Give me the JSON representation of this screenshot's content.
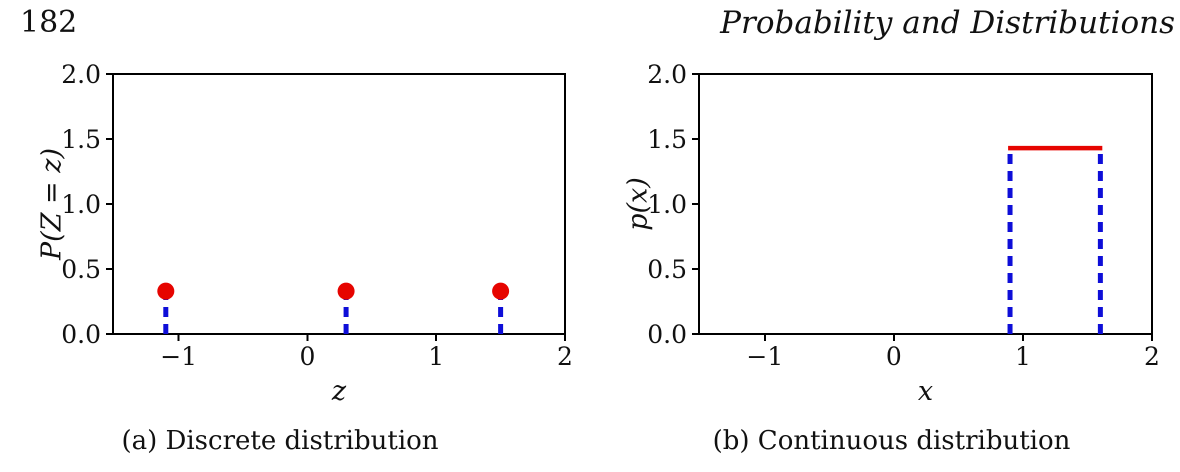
{
  "header": {
    "page_number": "182",
    "title": "Probability and Distributions"
  },
  "colors": {
    "axis": "#000000",
    "stem_blue": "#0e0ed8",
    "marker_red": "#e60400"
  },
  "chart_data": [
    {
      "type": "stem",
      "caption": "(a) Discrete distribution",
      "xlabel": "z",
      "ylabel": "P(Z = z)",
      "xlim": [
        -1.51,
        2.0
      ],
      "ylim": [
        0.0,
        2.0
      ],
      "grid": false,
      "legend": null,
      "xticks": [
        {
          "v": -1,
          "label": "−1"
        },
        {
          "v": 0,
          "label": "0"
        },
        {
          "v": 1,
          "label": "1"
        },
        {
          "v": 2,
          "label": "2"
        }
      ],
      "yticks": [
        {
          "v": 0.0,
          "label": "0.0"
        },
        {
          "v": 0.5,
          "label": "0.5"
        },
        {
          "v": 1.0,
          "label": "1.0"
        },
        {
          "v": 1.5,
          "label": "1.5"
        },
        {
          "v": 2.0,
          "label": "2.0"
        }
      ],
      "series": [
        {
          "kind": "stem",
          "name": "P(Z = z) point masses",
          "color": "#0e0ed8",
          "width": 5,
          "dash": "10 7",
          "marker": {
            "shape": "circle",
            "color": "#e60400",
            "radius": 8.5
          },
          "points": [
            [
              -1.1,
              0.33
            ],
            [
              0.3,
              0.33
            ],
            [
              1.5,
              0.33
            ]
          ]
        }
      ]
    },
    {
      "type": "line",
      "caption": "(b) Continuous distribution",
      "xlabel": "x",
      "ylabel": "p(x)",
      "xlim": [
        -1.51,
        2.0
      ],
      "ylim": [
        0.0,
        2.0
      ],
      "grid": false,
      "legend": null,
      "xticks": [
        {
          "v": -1,
          "label": "−1"
        },
        {
          "v": 0,
          "label": "0"
        },
        {
          "v": 1,
          "label": "1"
        },
        {
          "v": 2,
          "label": "2"
        }
      ],
      "yticks": [
        {
          "v": 0.0,
          "label": "0.0"
        },
        {
          "v": 0.5,
          "label": "0.5"
        },
        {
          "v": 1.0,
          "label": "1.0"
        },
        {
          "v": 1.5,
          "label": "1.5"
        },
        {
          "v": 2.0,
          "label": "2.0"
        }
      ],
      "series": [
        {
          "kind": "line",
          "name": "left support boundary x = 0.9",
          "color": "#0e0ed8",
          "width": 5,
          "dash": "10 7",
          "points": [
            [
              0.9,
              0.0
            ],
            [
              0.9,
              1.43
            ]
          ]
        },
        {
          "kind": "line",
          "name": "right support boundary x = 1.6",
          "color": "#0e0ed8",
          "width": 5,
          "dash": "10 7",
          "points": [
            [
              1.6,
              0.0
            ],
            [
              1.6,
              1.43
            ]
          ]
        },
        {
          "kind": "line",
          "name": "uniform density p(x) = 1.43 on [0.9, 1.6]",
          "color": "#e60400",
          "width": 4.5,
          "dash": null,
          "points": [
            [
              0.885,
              1.43
            ],
            [
              1.615,
              1.43
            ]
          ]
        }
      ]
    }
  ]
}
